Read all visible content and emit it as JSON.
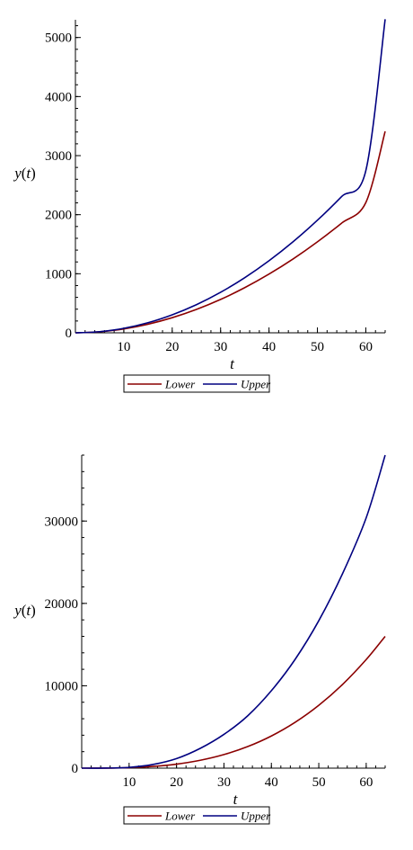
{
  "chart_data": [
    {
      "type": "line",
      "title": "",
      "xlabel": "t",
      "ylabel_var": "y",
      "ylabel_arg": "t",
      "xlim": [
        0,
        64
      ],
      "ylim": [
        0,
        5300
      ],
      "xticks": [
        10,
        20,
        30,
        40,
        50,
        60
      ],
      "yticks": [
        0,
        1000,
        2000,
        3000,
        4000,
        5000
      ],
      "y_minor_step": 200,
      "grid": false,
      "legend_placement": "bottom",
      "x": [
        0,
        5,
        10,
        15,
        20,
        25,
        30,
        35,
        40,
        45,
        50,
        55,
        60,
        64
      ],
      "series": [
        {
          "name": "Lower",
          "color": "#8b0000",
          "values": [
            0,
            17,
            66,
            146,
            256,
            396,
            565,
            765,
            994,
            1252,
            1540,
            1857,
            2204,
            3410
          ]
        },
        {
          "name": "Upper",
          "color": "#000080",
          "values": [
            0,
            19,
            76,
            171,
            305,
            476,
            686,
            934,
            1220,
            1544,
            1906,
            2307,
            2745,
            5310
          ]
        }
      ]
    },
    {
      "type": "line",
      "title": "",
      "xlabel": "t",
      "ylabel_var": "y",
      "ylabel_arg": "t",
      "xlim": [
        0,
        64
      ],
      "ylim": [
        0,
        38000
      ],
      "xticks": [
        10,
        20,
        30,
        40,
        50,
        60
      ],
      "yticks": [
        0,
        10000,
        20000,
        30000
      ],
      "y_minor_step": 2000,
      "grid": false,
      "legend_placement": "bottom",
      "x": [
        0,
        5,
        10,
        15,
        20,
        25,
        30,
        35,
        40,
        45,
        50,
        55,
        60,
        64
      ],
      "series": [
        {
          "name": "Lower",
          "color": "#8b0000",
          "values": [
            0,
            8,
            61,
            206,
            488,
            954,
            1648,
            2617,
            3906,
            5562,
            7629,
            10154,
            13182,
            16000
          ]
        },
        {
          "name": "Upper",
          "color": "#000080",
          "values": [
            0,
            6,
            92,
            440,
            1160,
            2400,
            4100,
            6350,
            9400,
            13200,
            17900,
            23600,
            30400,
            38000
          ]
        }
      ]
    }
  ]
}
